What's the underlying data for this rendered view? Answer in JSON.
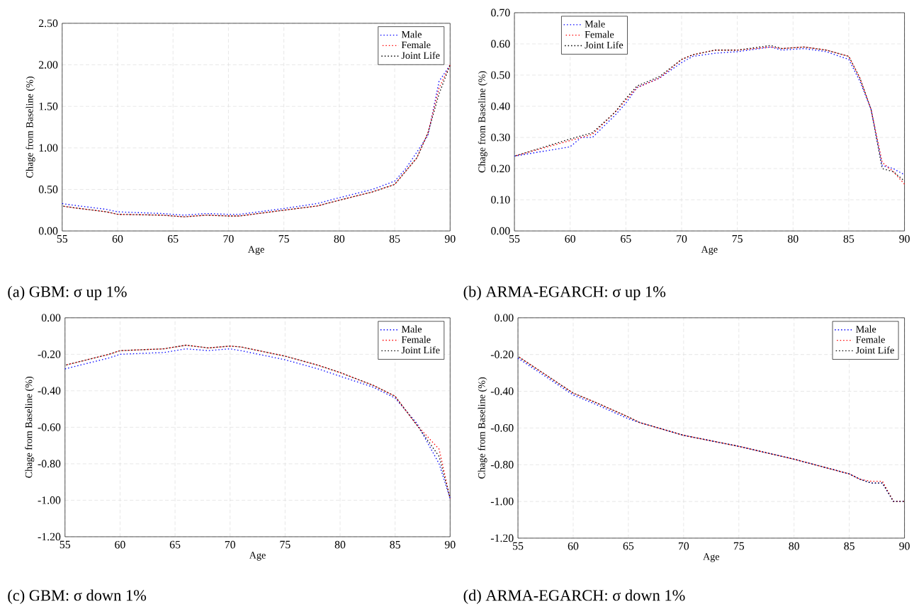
{
  "chart_data": [
    {
      "type": "line",
      "xlabel": "Age",
      "ylabel": "Chage from Baseline (%)",
      "annotations": [
        "(a) GBM: σ up 1%"
      ],
      "xlim": [
        55,
        90
      ],
      "ylim": [
        0,
        2.5
      ],
      "xticks": [
        55,
        60,
        65,
        70,
        75,
        80,
        85,
        90
      ],
      "yticks": [
        {
          "value": 0,
          "label": "0.00"
        },
        {
          "value": 0.5,
          "label": "0.50"
        },
        {
          "value": 1,
          "label": "1.00"
        },
        {
          "value": 1.5,
          "label": "1.50"
        },
        {
          "value": 2,
          "label": "2.00"
        },
        {
          "value": 2.5,
          "label": "2.50"
        }
      ],
      "grid": true,
      "legend": "top right",
      "line_style": "dotted",
      "series": [
        {
          "name": "Male",
          "color": "#0000ff",
          "x": [
            55,
            56,
            59,
            60,
            64,
            66,
            68,
            70,
            71,
            75,
            78,
            80,
            83,
            85,
            86,
            87,
            88,
            89,
            90
          ],
          "values": [
            0.33,
            0.31,
            0.26,
            0.23,
            0.21,
            0.19,
            0.21,
            0.2,
            0.2,
            0.27,
            0.33,
            0.4,
            0.5,
            0.6,
            0.75,
            0.95,
            1.15,
            1.8,
            2.0
          ]
        },
        {
          "name": "Female",
          "color": "#ff0000",
          "x": [
            55,
            56,
            59,
            60,
            64,
            66,
            68,
            70,
            71,
            75,
            78,
            80,
            83,
            85,
            86,
            87,
            88,
            89,
            90
          ],
          "values": [
            0.3,
            0.28,
            0.23,
            0.2,
            0.19,
            0.17,
            0.19,
            0.18,
            0.18,
            0.25,
            0.3,
            0.37,
            0.47,
            0.56,
            0.72,
            0.88,
            1.18,
            1.72,
            2.0
          ]
        },
        {
          "name": "Joint Life",
          "color": "#000000",
          "x": [
            55,
            56,
            59,
            60,
            64,
            66,
            68,
            70,
            71,
            75,
            78,
            80,
            83,
            85,
            86,
            87,
            88,
            89,
            90
          ],
          "values": [
            0.3,
            0.28,
            0.23,
            0.2,
            0.19,
            0.17,
            0.19,
            0.18,
            0.18,
            0.25,
            0.3,
            0.37,
            0.47,
            0.56,
            0.72,
            0.88,
            1.18,
            1.65,
            2.0
          ]
        }
      ]
    },
    {
      "type": "line",
      "xlabel": "Age",
      "ylabel": "Chage from Baseline (%)",
      "annotations": [
        "(b) ARMA-EGARCH: σ up 1%"
      ],
      "xlim": [
        55,
        90
      ],
      "ylim": [
        0,
        0.7
      ],
      "xticks": [
        55,
        60,
        65,
        70,
        75,
        80,
        85,
        90
      ],
      "yticks": [
        {
          "value": 0,
          "label": "0.00"
        },
        {
          "value": 0.1,
          "label": "0.10"
        },
        {
          "value": 0.2,
          "label": "0.20"
        },
        {
          "value": 0.3,
          "label": "0.30"
        },
        {
          "value": 0.4,
          "label": "0.40"
        },
        {
          "value": 0.5,
          "label": "0.50"
        },
        {
          "value": 0.6,
          "label": "0.60"
        },
        {
          "value": 0.7,
          "label": "0.70"
        }
      ],
      "grid": true,
      "legend": "top left",
      "line_style": "dotted",
      "series": [
        {
          "name": "Male",
          "color": "#0000ff",
          "x": [
            55,
            60,
            61,
            62,
            64,
            65,
            66,
            68,
            70,
            71,
            73,
            75,
            78,
            79,
            81,
            83,
            85,
            86,
            87,
            88,
            89,
            90
          ],
          "values": [
            0.24,
            0.27,
            0.3,
            0.3,
            0.37,
            0.41,
            0.46,
            0.49,
            0.54,
            0.56,
            0.57,
            0.575,
            0.59,
            0.58,
            0.585,
            0.575,
            0.55,
            0.48,
            0.39,
            0.21,
            0.2,
            0.18
          ]
        },
        {
          "name": "Female",
          "color": "#ff0000",
          "x": [
            55,
            60,
            61,
            62,
            64,
            65,
            66,
            68,
            70,
            71,
            73,
            75,
            78,
            79,
            81,
            83,
            85,
            86,
            87,
            88,
            89,
            90
          ],
          "values": [
            0.24,
            0.29,
            0.3,
            0.31,
            0.38,
            0.42,
            0.46,
            0.49,
            0.55,
            0.565,
            0.58,
            0.58,
            0.59,
            0.585,
            0.59,
            0.58,
            0.56,
            0.49,
            0.39,
            0.22,
            0.19,
            0.15
          ]
        },
        {
          "name": "Joint Life",
          "color": "#000000",
          "x": [
            55,
            60,
            61,
            62,
            64,
            65,
            66,
            68,
            70,
            71,
            73,
            75,
            78,
            79,
            81,
            83,
            85,
            86,
            87,
            88,
            89,
            90
          ],
          "values": [
            0.24,
            0.295,
            0.305,
            0.315,
            0.38,
            0.425,
            0.465,
            0.495,
            0.55,
            0.565,
            0.58,
            0.58,
            0.595,
            0.585,
            0.59,
            0.58,
            0.56,
            0.49,
            0.39,
            0.2,
            0.19,
            0.16
          ]
        }
      ]
    },
    {
      "type": "line",
      "xlabel": "Age",
      "ylabel": "Chage from Baseline (%)",
      "annotations": [
        "(c) GBM: σ down 1%"
      ],
      "xlim": [
        55,
        90
      ],
      "ylim": [
        -1.2,
        0
      ],
      "xticks": [
        55,
        60,
        65,
        70,
        75,
        80,
        85,
        90
      ],
      "yticks": [
        {
          "value": -1.2,
          "label": "-1.20"
        },
        {
          "value": -1,
          "label": "-1.00"
        },
        {
          "value": -0.8,
          "label": "-0.80"
        },
        {
          "value": -0.6,
          "label": "-0.60"
        },
        {
          "value": -0.4,
          "label": "-0.40"
        },
        {
          "value": -0.2,
          "label": "-0.20"
        },
        {
          "value": 0,
          "label": "0.00"
        }
      ],
      "grid": true,
      "legend": "top right",
      "line_style": "dotted",
      "series": [
        {
          "name": "Male",
          "color": "#0000ff",
          "x": [
            55,
            59,
            60,
            64,
            66,
            68,
            70,
            71,
            75,
            78,
            80,
            83,
            85,
            87,
            89,
            90
          ],
          "values": [
            -0.28,
            -0.22,
            -0.2,
            -0.19,
            -0.17,
            -0.18,
            -0.17,
            -0.18,
            -0.23,
            -0.28,
            -0.32,
            -0.38,
            -0.44,
            -0.58,
            -0.8,
            -0.99
          ]
        },
        {
          "name": "Female",
          "color": "#ff0000",
          "x": [
            55,
            59,
            60,
            64,
            66,
            68,
            70,
            71,
            75,
            78,
            80,
            83,
            85,
            87,
            89,
            90
          ],
          "values": [
            -0.26,
            -0.2,
            -0.18,
            -0.17,
            -0.15,
            -0.165,
            -0.155,
            -0.16,
            -0.21,
            -0.26,
            -0.3,
            -0.37,
            -0.43,
            -0.59,
            -0.72,
            -0.99
          ]
        },
        {
          "name": "Joint Life",
          "color": "#000000",
          "x": [
            55,
            59,
            60,
            64,
            66,
            68,
            70,
            71,
            75,
            78,
            80,
            83,
            85,
            87,
            89,
            90
          ],
          "values": [
            -0.26,
            -0.2,
            -0.18,
            -0.17,
            -0.15,
            -0.165,
            -0.155,
            -0.16,
            -0.21,
            -0.26,
            -0.3,
            -0.37,
            -0.43,
            -0.59,
            -0.76,
            -0.99
          ]
        }
      ]
    },
    {
      "type": "line",
      "xlabel": "Age",
      "ylabel": "Chage from Baseline (%)",
      "annotations": [
        "(d) ARMA-EGARCH: σ down 1%"
      ],
      "xlim": [
        55,
        90
      ],
      "ylim": [
        -1.2,
        0
      ],
      "xticks": [
        55,
        60,
        65,
        70,
        75,
        80,
        85,
        90
      ],
      "yticks": [
        {
          "value": -1.2,
          "label": "-1.20"
        },
        {
          "value": -1,
          "label": "-1.00"
        },
        {
          "value": -0.8,
          "label": "-0.80"
        },
        {
          "value": -0.6,
          "label": "-0.60"
        },
        {
          "value": -0.4,
          "label": "-0.40"
        },
        {
          "value": -0.2,
          "label": "-0.20"
        },
        {
          "value": 0,
          "label": "0.00"
        }
      ],
      "grid": true,
      "legend": "top right",
      "line_style": "dotted",
      "series": [
        {
          "name": "Male",
          "color": "#0000ff",
          "x": [
            55,
            60,
            62,
            65,
            66,
            70,
            75,
            80,
            85,
            86,
            87,
            88,
            89,
            90
          ],
          "values": [
            -0.22,
            -0.42,
            -0.47,
            -0.55,
            -0.57,
            -0.64,
            -0.7,
            -0.77,
            -0.85,
            -0.88,
            -0.9,
            -0.9,
            -1.0,
            -1.0
          ]
        },
        {
          "name": "Female",
          "color": "#ff0000",
          "x": [
            55,
            60,
            62,
            65,
            66,
            70,
            75,
            80,
            85,
            86,
            87,
            88,
            89,
            90
          ],
          "values": [
            -0.21,
            -0.41,
            -0.46,
            -0.54,
            -0.57,
            -0.64,
            -0.7,
            -0.77,
            -0.85,
            -0.88,
            -0.89,
            -0.89,
            -1.0,
            -1.0
          ]
        },
        {
          "name": "Joint Life",
          "color": "#000000",
          "x": [
            55,
            60,
            62,
            65,
            66,
            70,
            75,
            80,
            85,
            86,
            87,
            88,
            89,
            90
          ],
          "values": [
            -0.21,
            -0.41,
            -0.46,
            -0.54,
            -0.57,
            -0.64,
            -0.7,
            -0.77,
            -0.85,
            -0.88,
            -0.9,
            -0.9,
            -1.0,
            -1.0
          ]
        }
      ]
    }
  ]
}
